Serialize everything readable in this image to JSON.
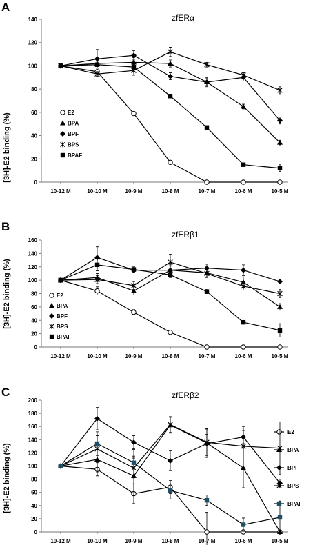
{
  "chart_data": [
    {
      "type": "line",
      "panel": "A",
      "title": "zfERα",
      "ylabel": "[3H]-E2 binding (%)",
      "ylim": [
        0,
        140
      ],
      "yticks": [
        "0",
        "20",
        "40",
        "60",
        "80",
        "100",
        "120",
        "140"
      ],
      "categories": [
        "10-12 M",
        "10-10 M",
        "10-9 M",
        "10-8 M",
        "10-7 M",
        "10-6 M",
        "10-5 M"
      ],
      "legend_position": "left",
      "series": [
        {
          "name": "E2",
          "marker": "circle-open",
          "values": [
            100,
            95,
            59,
            17,
            0,
            0,
            0
          ],
          "err": [
            0,
            1,
            1,
            1,
            0,
            0,
            0
          ]
        },
        {
          "name": "BPA",
          "marker": "triangle",
          "values": [
            100,
            102,
            103,
            102,
            86,
            65,
            34
          ],
          "err": [
            0,
            2,
            4,
            3,
            3,
            2,
            2
          ]
        },
        {
          "name": "BPF",
          "marker": "diamond",
          "values": [
            100,
            106,
            109,
            91,
            86,
            90,
            53
          ],
          "err": [
            0,
            8,
            4,
            3,
            4,
            3,
            3
          ]
        },
        {
          "name": "BPS",
          "marker": "x",
          "values": [
            100,
            93,
            96,
            112,
            101,
            92,
            79
          ],
          "err": [
            0,
            2,
            4,
            4,
            2,
            2,
            3
          ]
        },
        {
          "name": "BPAF",
          "marker": "square",
          "values": [
            100,
            101,
            99,
            74,
            47,
            15,
            12
          ],
          "err": [
            0,
            1,
            2,
            1,
            1,
            1,
            3
          ]
        }
      ]
    },
    {
      "type": "line",
      "panel": "B",
      "title": "zfERβ1",
      "ylabel": "[3H]-E2 binding (%)",
      "ylim": [
        0,
        160
      ],
      "yticks": [
        "0",
        "20",
        "40",
        "60",
        "80",
        "100",
        "120",
        "140",
        "160"
      ],
      "categories": [
        "10-12 M",
        "10-10 M",
        "10-9 M",
        "10-8 M",
        "10-7 M",
        "10-6 M",
        "10-5 M"
      ],
      "legend_position": "left",
      "series": [
        {
          "name": "E2",
          "marker": "circle-open",
          "values": [
            100,
            84,
            52,
            22,
            0,
            0,
            0
          ],
          "err": [
            0,
            6,
            4,
            1,
            0,
            0,
            0
          ]
        },
        {
          "name": "BPA",
          "marker": "triangle",
          "values": [
            100,
            104,
            84,
            115,
            111,
            97,
            60
          ],
          "err": [
            0,
            6,
            6,
            6,
            6,
            8,
            5
          ]
        },
        {
          "name": "BPF",
          "marker": "diamond",
          "values": [
            100,
            134,
            115,
            115,
            118,
            115,
            98
          ],
          "err": [
            0,
            16,
            4,
            8,
            6,
            8,
            3
          ]
        },
        {
          "name": "BPS",
          "marker": "x",
          "values": [
            100,
            101,
            92,
            127,
            110,
            91,
            80
          ],
          "err": [
            0,
            6,
            6,
            12,
            6,
            6,
            6
          ]
        },
        {
          "name": "BPAF",
          "marker": "square",
          "values": [
            100,
            123,
            116,
            108,
            83,
            37,
            25
          ],
          "err": [
            0,
            9,
            4,
            4,
            3,
            2,
            10
          ]
        }
      ]
    },
    {
      "type": "line",
      "panel": "C",
      "title": "zfERβ2",
      "ylabel": "[3H]-E2 binding (%)",
      "ylim": [
        0,
        200
      ],
      "yticks": [
        "0",
        "20",
        "40",
        "60",
        "80",
        "100",
        "120",
        "140",
        "160",
        "180",
        "200"
      ],
      "categories": [
        "10-12 M",
        "10-10 M",
        "10-9 M",
        "10-8 M",
        "10-7 M",
        "10-6 M",
        "10-5 M"
      ],
      "legend_position": "right",
      "series": [
        {
          "name": "E2",
          "marker": "circle-open",
          "values": [
            100,
            95,
            58,
            68,
            0,
            0,
            0
          ],
          "err": [
            0,
            10,
            15,
            10,
            30,
            0,
            0
          ]
        },
        {
          "name": "BPA",
          "marker": "triangle",
          "values": [
            100,
            110,
            85,
            162,
            135,
            97,
            0
          ],
          "err": [
            0,
            20,
            30,
            12,
            22,
            30,
            0
          ]
        },
        {
          "name": "BPF",
          "marker": "diamond",
          "values": [
            100,
            172,
            136,
            108,
            134,
            144,
            74
          ],
          "err": [
            0,
            17,
            10,
            15,
            14,
            10,
            6
          ]
        },
        {
          "name": "BPS",
          "marker": "x",
          "values": [
            100,
            126,
            97,
            163,
            136,
            130,
            127
          ],
          "err": [
            0,
            20,
            15,
            12,
            20,
            30,
            40
          ]
        },
        {
          "name": "BPAF",
          "marker": "square",
          "values": [
            100,
            134,
            105,
            63,
            48,
            11,
            22
          ],
          "err": [
            0,
            18,
            20,
            13,
            8,
            10,
            25
          ]
        }
      ]
    }
  ]
}
